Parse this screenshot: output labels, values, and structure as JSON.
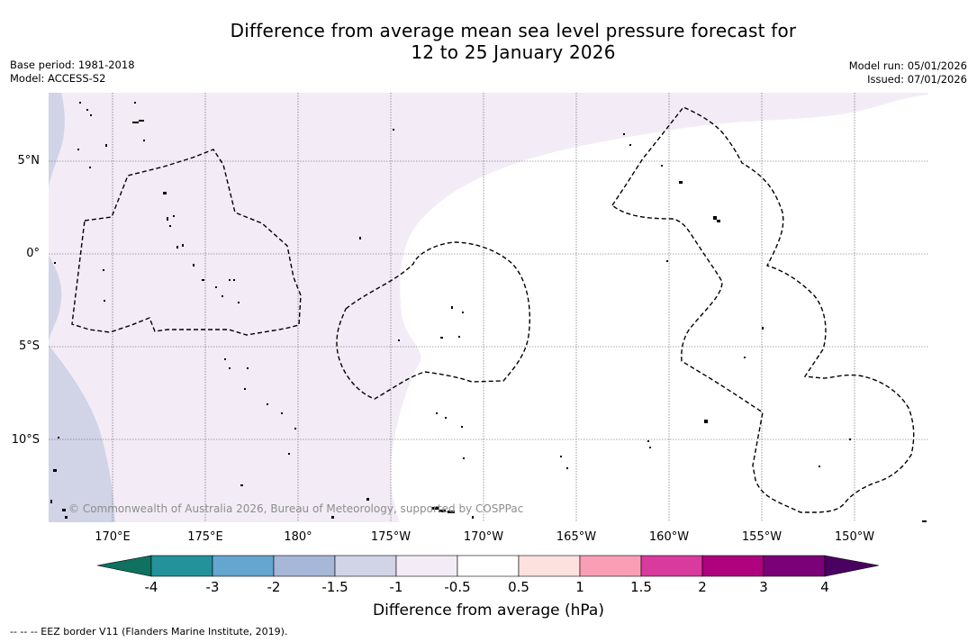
{
  "title": {
    "line1": "Difference from average mean sea level pressure forecast for",
    "line2": "12 to 25 January 2026"
  },
  "meta": {
    "base_period": "Base period: 1981-2018",
    "model": "Model: ACCESS-S2",
    "model_run": "Model run: 05/01/2026",
    "issued": "Issued: 07/01/2026"
  },
  "map": {
    "lat_labels": [
      "5°N",
      "0°",
      "5°S",
      "10°S"
    ],
    "lon_labels": [
      "170°E",
      "175°E",
      "180°",
      "175°W",
      "170°W",
      "165°W",
      "160°W",
      "155°W",
      "150°W"
    ],
    "copyright": "© Commonwealth of Australia 2026, Bureau of Meteorology, supported by COSPPac",
    "region_colors": {
      "neutral": "#ffffff",
      "light_negative": "#f3ecf6",
      "moderate_negative": "#d1d3e6"
    },
    "border_color": "#000000"
  },
  "colorbar": {
    "ticks": [
      "-4",
      "-3",
      "-2",
      "-1.5",
      "-1",
      "-0.5",
      "0.5",
      "1",
      "1.5",
      "2",
      "3",
      "4"
    ],
    "colors": [
      "#0f7261",
      "#23929a",
      "#65a6d1",
      "#a6b7d8",
      "#d1d3e6",
      "#f3ecf6",
      "#ffffff",
      "#fde1de",
      "#f89fb5",
      "#d83a9e",
      "#ae027e",
      "#7a0177",
      "#4a0061"
    ],
    "label": "Difference from average (hPa)"
  },
  "footnote": "-- -- -- EEZ border V11 (Flanders Marine Institute, 2019)."
}
